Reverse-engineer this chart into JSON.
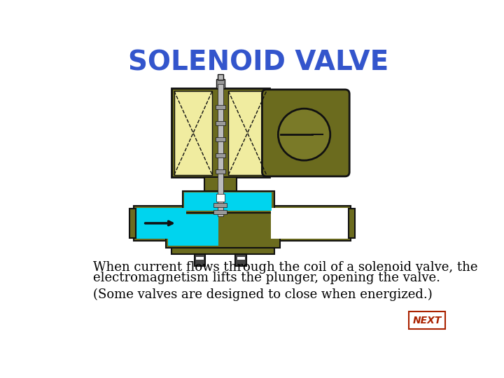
{
  "title": "SOLENOID VALVE",
  "title_color": "#3355cc",
  "title_fontsize": 28,
  "body_text_line1": "When current flows through the coil of a solenoid valve, the",
  "body_text_line2": "electromagnetism lifts the plunger, opening the valve.",
  "body_text_line3": "(Some valves are designed to close when energized.)",
  "body_text_color": "#000000",
  "body_text_fontsize": 13,
  "next_button_text": "NEXT",
  "next_button_color": "#aa2200",
  "background_color": "#ffffff",
  "olive": "#6b6b1e",
  "olive_dark": "#4a4a12",
  "yellow": "#f0eca0",
  "cyan": "#00d4ee",
  "dark": "#111111",
  "gray": "#999999",
  "gray2": "#bbbbbb",
  "conduit_olive": "#7a7a28"
}
